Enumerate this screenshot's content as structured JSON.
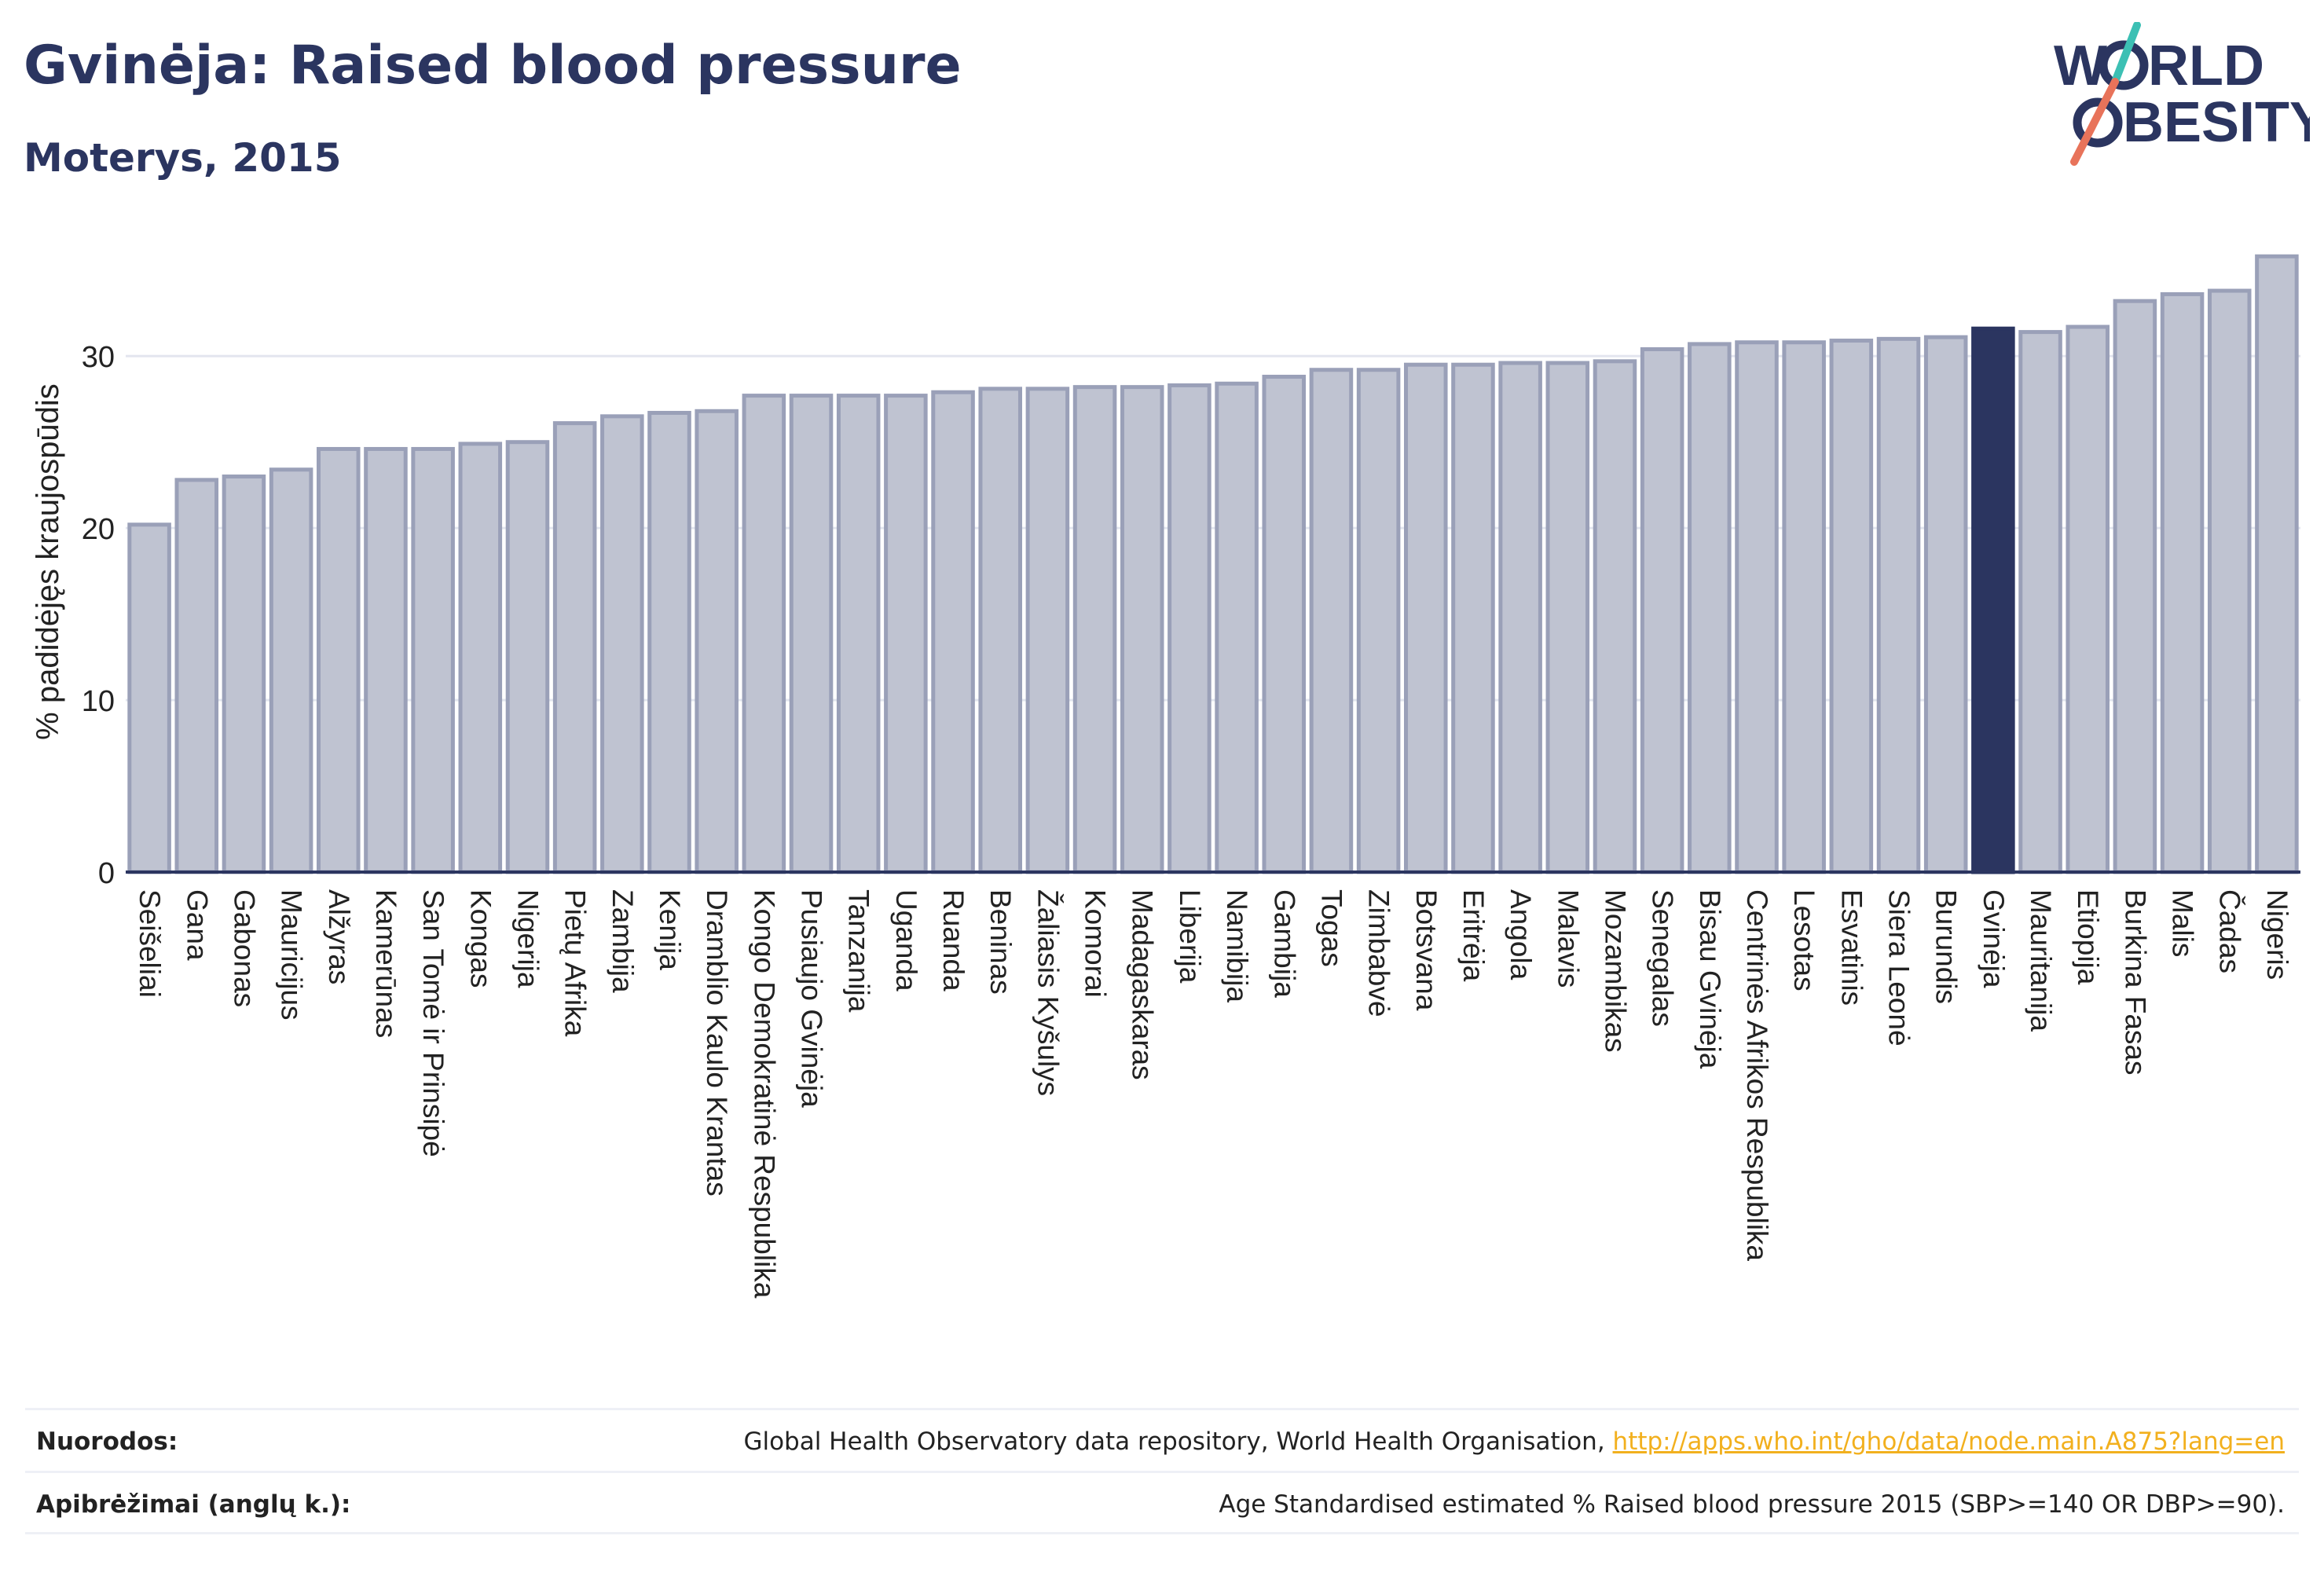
{
  "header": {
    "title": "Gvinėja: Raised blood pressure",
    "subtitle": "Moterys, 2015"
  },
  "logo": {
    "line1": "W",
    "line1_rest": "RLD",
    "line2_rest": "BESITY"
  },
  "chart_data": {
    "type": "bar",
    "ylabel": "% padidėjęs kraujospūdis",
    "ylim": [
      0,
      37
    ],
    "yticks": [
      0,
      10,
      20,
      30
    ],
    "grid": true,
    "highlight": "Gvinėja",
    "colors": {
      "bar": "#bfc3d1",
      "bar_edge": "#9aa0b8",
      "highlight": "#2b3560",
      "grid": "#e3e6ef",
      "axis": "#2b3560"
    },
    "categories": [
      "Seišeliai",
      "Gana",
      "Gabonas",
      "Mauricijus",
      "Alžyras",
      "Kamerūnas",
      "San Tomė ir Prinsipė",
      "Kongas",
      "Nigerija",
      "Pietų Afrika",
      "Zambija",
      "Kenija",
      "Dramblio Kaulo Krantas",
      "Kongo Demokratinė Respublika",
      "Pusiaujo Gvinėja",
      "Tanzanija",
      "Uganda",
      "Ruanda",
      "Beninas",
      "Žaliasis Kyšulys",
      "Komorai",
      "Madagaskaras",
      "Liberija",
      "Namibija",
      "Gambija",
      "Togas",
      "Zimbabvė",
      "Botsvana",
      "Eritrėja",
      "Angola",
      "Malavis",
      "Mozambikas",
      "Senegalas",
      "Bisau Gvinėja",
      "Centrinės Afrikos Respublika",
      "Lesotas",
      "Esvatinis",
      "Siera Leonė",
      "Burundis",
      "Gvinėja",
      "Mauritanija",
      "Etiopija",
      "Burkina Fasas",
      "Malis",
      "Čadas",
      "Nigeris"
    ],
    "values": [
      20.2,
      22.8,
      23.0,
      23.4,
      24.6,
      24.6,
      24.6,
      24.9,
      25.0,
      26.1,
      26.5,
      26.7,
      26.8,
      27.7,
      27.7,
      27.7,
      27.7,
      27.9,
      28.1,
      28.1,
      28.2,
      28.2,
      28.3,
      28.4,
      28.8,
      29.2,
      29.2,
      29.5,
      29.5,
      29.6,
      29.6,
      29.7,
      30.4,
      30.7,
      30.8,
      30.8,
      30.9,
      31.0,
      31.1,
      31.6,
      31.4,
      31.7,
      33.2,
      33.6,
      33.8,
      35.8
    ]
  },
  "footer": {
    "sources_label": "Nuorodos:",
    "sources_text": "Global Health Observatory data repository, World Health Organisation, ",
    "sources_link": "http://apps.who.int/gho/data/node.main.A875?lang=en",
    "definitions_label": "Apibrėžimai (anglų k.):",
    "definitions_text": "Age Standardised estimated % Raised blood pressure 2015 (SBP>=140 OR DBP>=90)."
  }
}
